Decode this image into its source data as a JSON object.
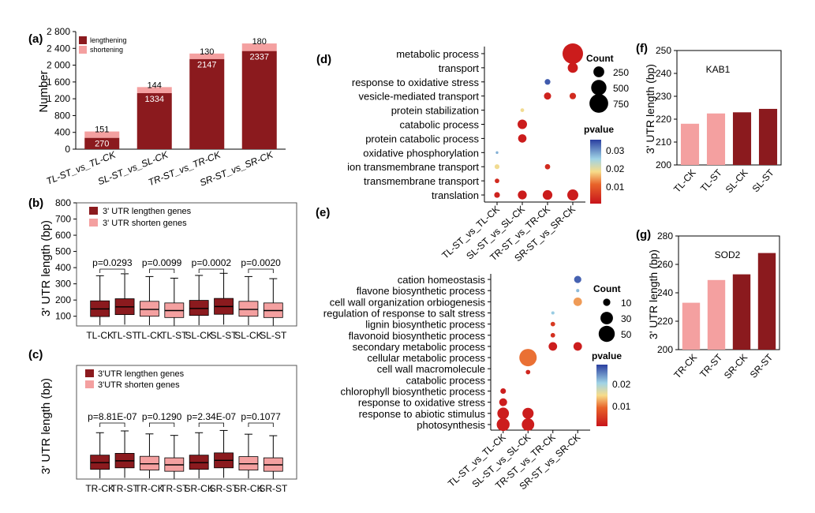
{
  "colors": {
    "lengthening": "#8b1a1e",
    "shortening": "#f4a0a0",
    "dark": "#8b1a1e",
    "light": "#f4a0a0",
    "med_bg": "#ffffff"
  },
  "chart_data": [
    {
      "panel": "(a)",
      "type": "bar",
      "stacked": true,
      "ylabel": "Number",
      "ylim": [
        0,
        2800
      ],
      "yticks": [
        "0",
        "400",
        "800",
        "1 200",
        "1 600",
        "2 000",
        "2 400",
        "2 800"
      ],
      "ytick_values": [
        0,
        400,
        800,
        1200,
        1600,
        2000,
        2400,
        2800
      ],
      "categories": [
        "TL-ST_vs_TL-CK",
        "SL-ST_vs_SL-CK",
        "TR-ST_vs_TR-CK",
        "SR-ST_vs_SR-CK"
      ],
      "series": [
        {
          "name": "lengthening",
          "values": [
            270,
            1334,
            2147,
            2337
          ],
          "labels": [
            "270",
            "1334",
            "2147",
            "2337"
          ]
        },
        {
          "name": "shortening",
          "values": [
            151,
            144,
            130,
            180
          ],
          "labels": [
            "151",
            "144",
            "130",
            "180"
          ]
        }
      ],
      "legend": [
        "lengthening",
        "shortening"
      ]
    },
    {
      "panel": "(b)",
      "type": "box",
      "ylabel": "3' UTR length (bp)",
      "ylim": [
        0,
        800
      ],
      "yticks": [
        "100",
        "200",
        "300",
        "400",
        "500",
        "600",
        "700",
        "800"
      ],
      "ytick_values": [
        100,
        200,
        300,
        400,
        500,
        600,
        700,
        800
      ],
      "categories": [
        "TL-CK",
        "TL-ST",
        "TL-CK",
        "TL-ST",
        "SL-CK",
        "SL-ST",
        "SL-CK",
        "SL-ST"
      ],
      "group": [
        "lengthen",
        "lengthen",
        "shorten",
        "shorten",
        "lengthen",
        "lengthen",
        "shorten",
        "shorten"
      ],
      "boxes": [
        {
          "min": 45,
          "q1": 98,
          "median": 145,
          "q3": 195,
          "max": 350
        },
        {
          "min": 48,
          "q1": 110,
          "median": 158,
          "q3": 208,
          "max": 362
        },
        {
          "min": 45,
          "q1": 100,
          "median": 142,
          "q3": 192,
          "max": 345
        },
        {
          "min": 42,
          "q1": 92,
          "median": 135,
          "q3": 182,
          "max": 335
        },
        {
          "min": 45,
          "q1": 105,
          "median": 148,
          "q3": 198,
          "max": 352
        },
        {
          "min": 48,
          "q1": 112,
          "median": 160,
          "q3": 210,
          "max": 365
        },
        {
          "min": 45,
          "q1": 100,
          "median": 142,
          "q3": 192,
          "max": 345
        },
        {
          "min": 42,
          "q1": 92,
          "median": 135,
          "q3": 182,
          "max": 332
        }
      ],
      "pvalues": [
        "p=0.0293",
        "p=0.0099",
        "p=0.0002",
        "p=0.0020"
      ],
      "legend": [
        "3' UTR lengthen genes",
        "3' UTR shorten genes"
      ]
    },
    {
      "panel": "(c)",
      "type": "box",
      "ylabel": "3' UTR length (bp)",
      "categories": [
        "TR-CK",
        "TR-ST",
        "TR-CK",
        "TR-ST",
        "SR-CK",
        "SR-ST",
        "SR-CK",
        "SR-ST"
      ],
      "group": [
        "lengthen",
        "lengthen",
        "shorten",
        "shorten",
        "lengthen",
        "lengthen",
        "shorten",
        "shorten"
      ],
      "boxes": [
        {
          "min": 45,
          "q1": 105,
          "median": 150,
          "q3": 200,
          "max": 350
        },
        {
          "min": 48,
          "q1": 115,
          "median": 162,
          "q3": 212,
          "max": 362
        },
        {
          "min": 45,
          "q1": 100,
          "median": 142,
          "q3": 192,
          "max": 342
        },
        {
          "min": 42,
          "q1": 92,
          "median": 135,
          "q3": 182,
          "max": 332
        },
        {
          "min": 45,
          "q1": 105,
          "median": 150,
          "q3": 200,
          "max": 350
        },
        {
          "min": 48,
          "q1": 115,
          "median": 165,
          "q3": 215,
          "max": 365
        },
        {
          "min": 45,
          "q1": 100,
          "median": 142,
          "q3": 190,
          "max": 340
        },
        {
          "min": 42,
          "q1": 92,
          "median": 135,
          "q3": 182,
          "max": 330
        }
      ],
      "pvalues": [
        "p=8.81E-07",
        "p=0.1290",
        "p=2.34E-07",
        "p=0.1077"
      ],
      "legend": [
        "3'UTR lengthen genes",
        "3'UTR shorten genes"
      ]
    },
    {
      "panel": "(d)",
      "type": "scatter",
      "xlabels": [
        "TL-ST_vs_TL-CK",
        "SL-ST_vs_SL-CK",
        "TR-ST_vs_TR-CK",
        "SR-ST_vs_SR-CK"
      ],
      "ylabels": [
        "metabolic process",
        "transport",
        "response to oxidative stress",
        "vesicle-mediated transport",
        "protein stabilization",
        "catabolic process",
        "protein catabolic process",
        "oxidative phosphorylation",
        "ion transmembrane transport",
        "transmembrane transport",
        "translation"
      ],
      "points": [
        {
          "x": 3,
          "y": 0,
          "count": 900,
          "p": 0.002
        },
        {
          "x": 3,
          "y": 1,
          "count": 220,
          "p": 0.002
        },
        {
          "x": 2,
          "y": 2,
          "count": 70,
          "p": 0.034
        },
        {
          "x": 2,
          "y": 3,
          "count": 110,
          "p": 0.003
        },
        {
          "x": 3,
          "y": 3,
          "count": 90,
          "p": 0.004
        },
        {
          "x": 1,
          "y": 4,
          "count": 30,
          "p": 0.019
        },
        {
          "x": 1,
          "y": 5,
          "count": 190,
          "p": 0.002
        },
        {
          "x": 1,
          "y": 6,
          "count": 150,
          "p": 0.002
        },
        {
          "x": 0,
          "y": 7,
          "count": 15,
          "p": 0.028
        },
        {
          "x": 0,
          "y": 8,
          "count": 50,
          "p": 0.019
        },
        {
          "x": 2,
          "y": 8,
          "count": 60,
          "p": 0.004
        },
        {
          "x": 0,
          "y": 9,
          "count": 45,
          "p": 0.004
        },
        {
          "x": 0,
          "y": 10,
          "count": 70,
          "p": 0.003
        },
        {
          "x": 1,
          "y": 10,
          "count": 170,
          "p": 0.002
        },
        {
          "x": 2,
          "y": 10,
          "count": 200,
          "p": 0.002
        },
        {
          "x": 3,
          "y": 10,
          "count": 260,
          "p": 0.002
        }
      ],
      "size_legend_title": "Count",
      "size_legend": [
        {
          "label": "250",
          "count": 250
        },
        {
          "label": "500",
          "count": 500
        },
        {
          "label": "750",
          "count": 750
        }
      ],
      "color_legend_title": "pvalue",
      "color_ticks": [
        {
          "label": "0.03",
          "v": 0.03
        },
        {
          "label": "0.02",
          "v": 0.02
        },
        {
          "label": "0.01",
          "v": 0.01
        }
      ],
      "crange": [
        0.001,
        0.036
      ]
    },
    {
      "panel": "(e)",
      "type": "scatter",
      "xlabels": [
        "TL-ST_vs_TL-CK",
        "SL-ST_vs_SL-CK",
        "TR-ST_vs_TR-CK",
        "SR-ST_vs_SR-CK"
      ],
      "ylabels": [
        "cation homeostasis",
        "flavone biosynthetic process",
        "cell wall organization orbiogenesis",
        "regulation of response to salt stress",
        "lignin biosynthetic process",
        "flavonoid biosynthetic process",
        "secondary metabolic process",
        "cellular metabolic process",
        "cell wall macromolecule",
        "catabolic process",
        "chlorophyll biosynthetic process",
        "response to oxidative stress",
        "response to abiotic stimulus",
        "photosynthesis"
      ],
      "points": [
        {
          "x": 3,
          "y": 0,
          "count": 10,
          "p": 0.027
        },
        {
          "x": 3,
          "y": 1,
          "count": 2,
          "p": 0.022
        },
        {
          "x": 3,
          "y": 2,
          "count": 14,
          "p": 0.012
        },
        {
          "x": 2,
          "y": 3,
          "count": 2,
          "p": 0.021
        },
        {
          "x": 2,
          "y": 4,
          "count": 4,
          "p": 0.005
        },
        {
          "x": 2,
          "y": 5,
          "count": 4,
          "p": 0.004
        },
        {
          "x": 2,
          "y": 6,
          "count": 14,
          "p": 0.002
        },
        {
          "x": 3,
          "y": 6,
          "count": 14,
          "p": 0.002
        },
        {
          "x": 1,
          "y": 7,
          "count": 58,
          "p": 0.01
        },
        {
          "x": 1,
          "y": 8.3,
          "count": 4,
          "p": 0.003
        },
        {
          "x": 0,
          "y": 10,
          "count": 6,
          "p": 0.002
        },
        {
          "x": 0,
          "y": 11,
          "count": 12,
          "p": 0.002
        },
        {
          "x": 0,
          "y": 12,
          "count": 26,
          "p": 0.002
        },
        {
          "x": 1,
          "y": 12,
          "count": 24,
          "p": 0.002
        },
        {
          "x": 0,
          "y": 13,
          "count": 32,
          "p": 0.002
        },
        {
          "x": 1,
          "y": 13,
          "count": 30,
          "p": 0.002
        }
      ],
      "size_legend_title": "Count",
      "size_legend": [
        {
          "label": "10",
          "count": 10
        },
        {
          "label": "30",
          "count": 30
        },
        {
          "label": "50",
          "count": 50
        }
      ],
      "color_legend_title": "pvalue",
      "color_ticks": [
        {
          "label": "0.02",
          "v": 0.02
        },
        {
          "label": "0.01",
          "v": 0.01
        }
      ],
      "crange": [
        0.001,
        0.029
      ]
    },
    {
      "panel": "(f)",
      "type": "bar",
      "title": "KAB1",
      "ylabel": "3' UTR length (bp)",
      "ylim": [
        200,
        250
      ],
      "yticks": [
        "200",
        "210",
        "220",
        "230",
        "240",
        "250"
      ],
      "ytick_values": [
        200,
        210,
        220,
        230,
        240,
        250
      ],
      "categories": [
        "TL-CK",
        "TL-ST",
        "SL-CK",
        "SL-ST"
      ],
      "values": [
        218,
        222.5,
        223,
        224.5
      ],
      "bar_colors": [
        "light",
        "light",
        "dark",
        "dark"
      ]
    },
    {
      "panel": "(g)",
      "type": "bar",
      "title": "SOD2",
      "ylabel": "3' UTR length (bp)",
      "ylim": [
        200,
        280
      ],
      "yticks": [
        "200",
        "220",
        "240",
        "260",
        "280"
      ],
      "ytick_values": [
        200,
        220,
        240,
        260,
        280
      ],
      "categories": [
        "TR-CK",
        "TR-ST",
        "SR-CK",
        "SR-ST"
      ],
      "values": [
        233,
        249,
        253,
        268
      ],
      "bar_colors": [
        "light",
        "light",
        "dark",
        "dark"
      ]
    }
  ]
}
